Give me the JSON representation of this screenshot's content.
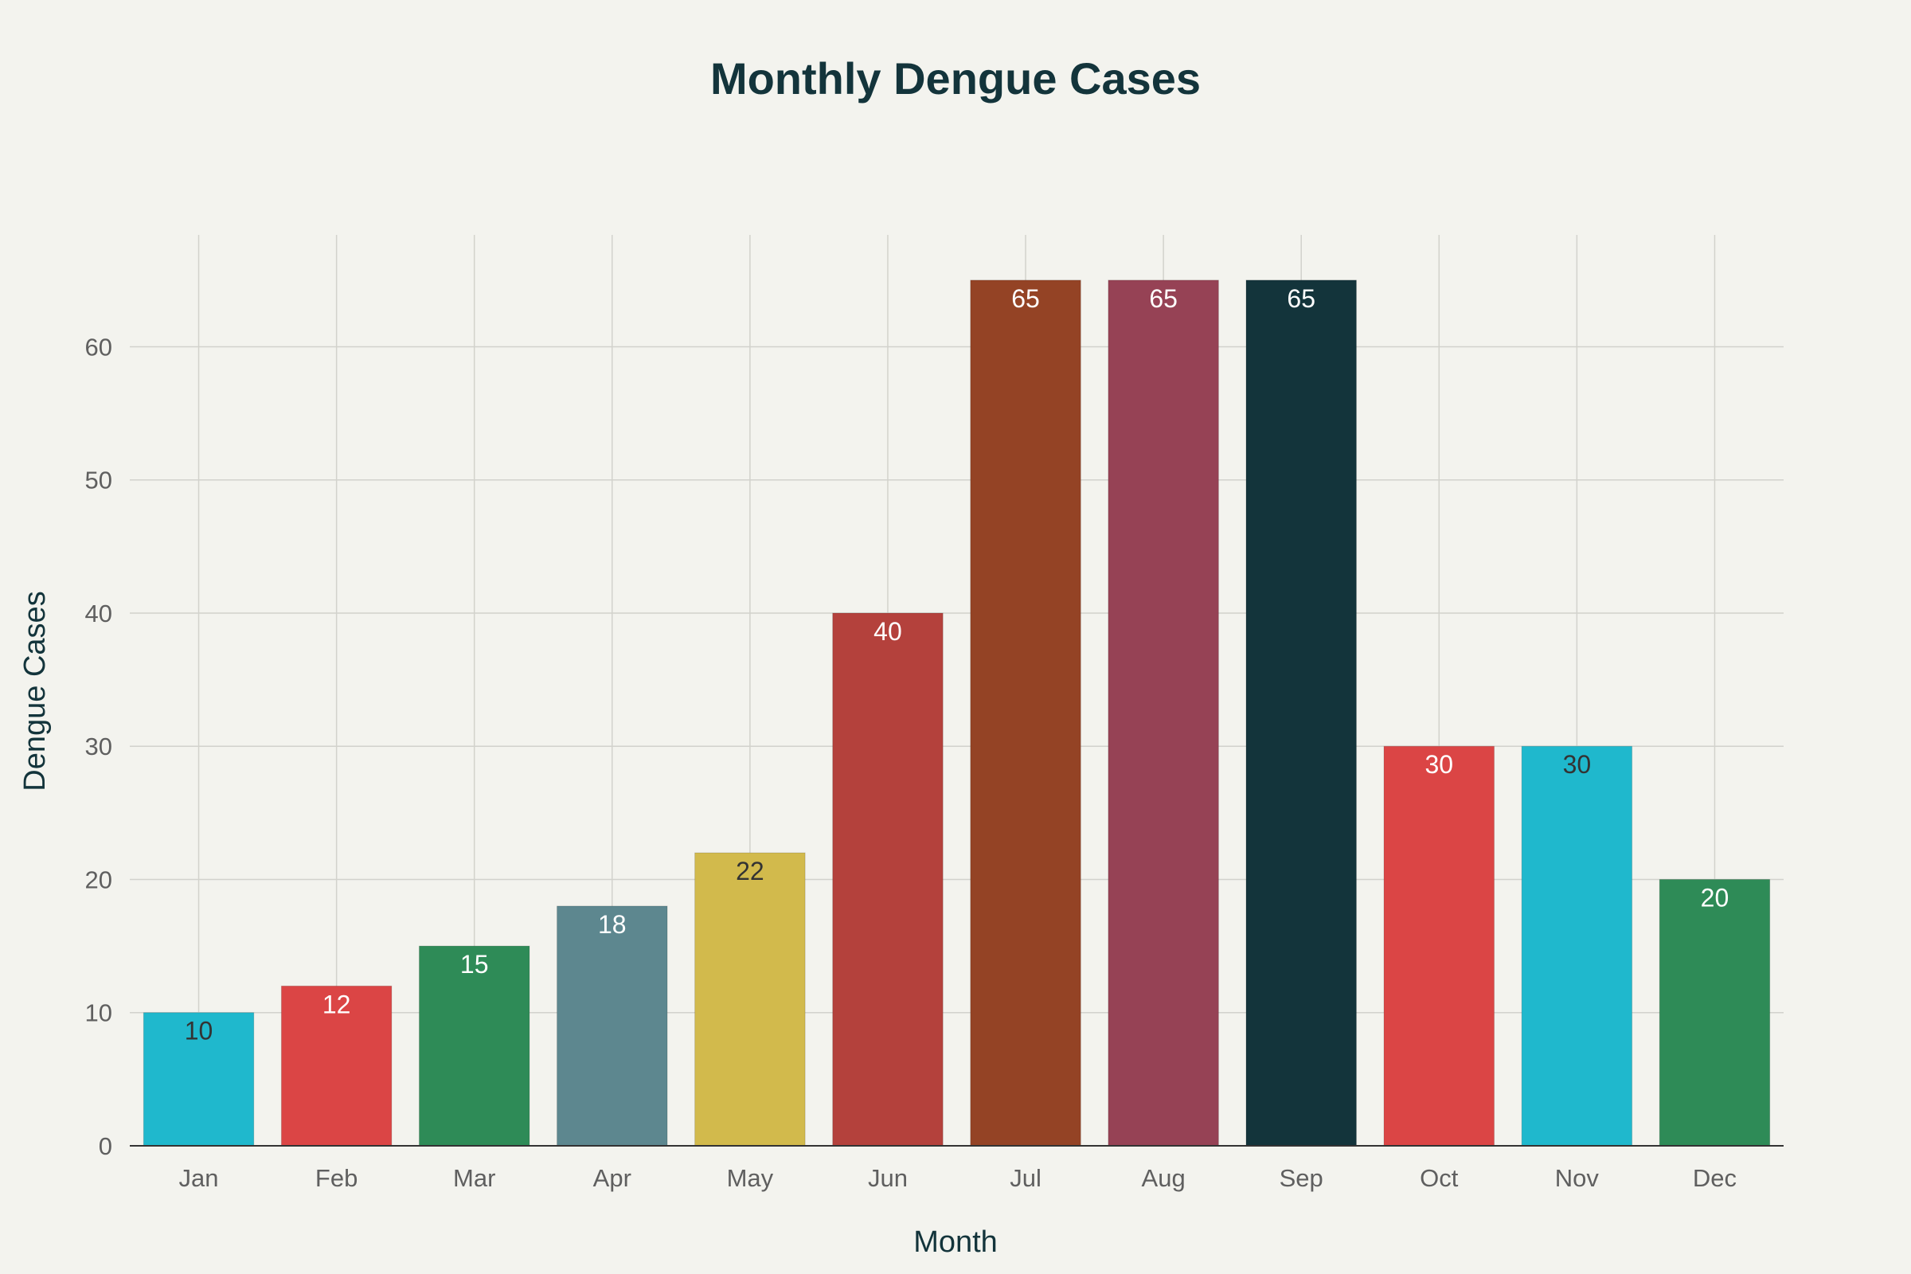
{
  "chart_data": {
    "type": "bar",
    "title": "Monthly Dengue Cases",
    "xlabel": "Month",
    "ylabel": "Dengue Cases",
    "categories": [
      "Jan",
      "Feb",
      "Mar",
      "Apr",
      "May",
      "Jun",
      "Jul",
      "Aug",
      "Sep",
      "Oct",
      "Nov",
      "Dec"
    ],
    "values": [
      10,
      12,
      15,
      18,
      22,
      40,
      65,
      65,
      65,
      30,
      30,
      20
    ],
    "bar_colors": [
      "#1fb8cd",
      "#db4545",
      "#2e8b57",
      "#5d878f",
      "#d2ba4c",
      "#b4413c",
      "#944325",
      "#964255",
      "#13343b",
      "#db4545",
      "#1fb8cd",
      "#2e8b57"
    ],
    "label_colors": [
      "#333333",
      "#ffffff",
      "#ffffff",
      "#ffffff",
      "#333333",
      "#ffffff",
      "#ffffff",
      "#ffffff",
      "#ffffff",
      "#ffffff",
      "#333333",
      "#ffffff"
    ],
    "ylim": [
      0,
      68.4
    ],
    "yticks": [
      0,
      10,
      20,
      30,
      40,
      50,
      60
    ],
    "grid": true,
    "legend": "none"
  }
}
